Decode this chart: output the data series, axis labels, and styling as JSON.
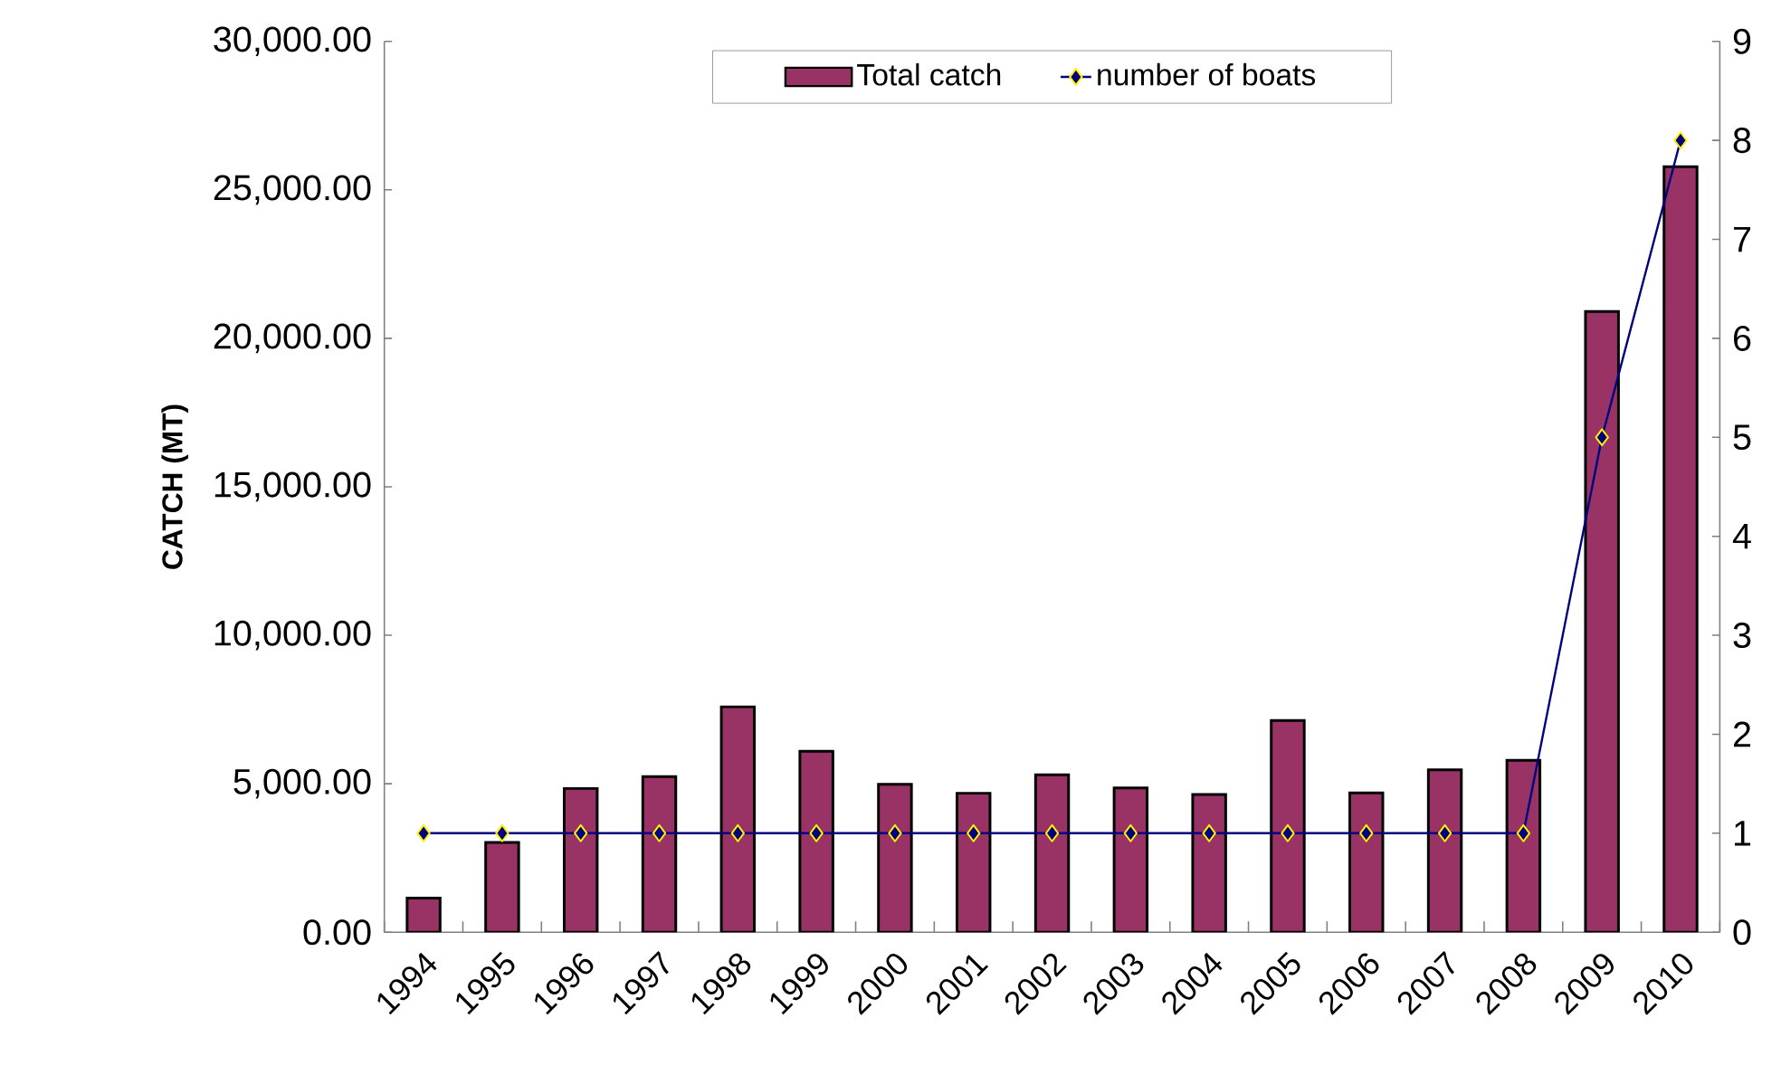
{
  "chart_data": {
    "type": "bar",
    "ylabel": "CATCH (MT)",
    "categories": [
      "1994",
      "1995",
      "1996",
      "1997",
      "1998",
      "1999",
      "2000",
      "2001",
      "2002",
      "2003",
      "2004",
      "2005",
      "2006",
      "2007",
      "2008",
      "2009",
      "2010"
    ],
    "series": [
      {
        "name": "Total catch",
        "color": "#993366",
        "values": [
          1150,
          3020,
          4840,
          5240,
          7590,
          6090,
          4980,
          4680,
          5300,
          4860,
          4640,
          7130,
          4690,
          5470,
          5790,
          20900,
          25780
        ]
      },
      {
        "name": "number of boats",
        "type": "line",
        "axis": "y2",
        "color": "#000080",
        "marker": "diamond",
        "values": [
          1,
          1,
          1,
          1,
          1,
          1,
          1,
          1,
          1,
          1,
          1,
          1,
          1,
          1,
          1,
          5,
          8
        ]
      }
    ],
    "ylim": [
      0,
      30000
    ],
    "yticks": [
      {
        "value": 0,
        "label": "0.00"
      },
      {
        "value": 5000,
        "label": "5,000.00"
      },
      {
        "value": 10000,
        "label": "10,000.00"
      },
      {
        "value": 15000,
        "label": "15,000.00"
      },
      {
        "value": 20000,
        "label": "20,000.00"
      },
      {
        "value": 25000,
        "label": "25,000.00"
      },
      {
        "value": 30000,
        "label": "30,000.00"
      }
    ],
    "y2lim": [
      0,
      9
    ],
    "y2ticks": [
      0,
      1,
      2,
      3,
      4,
      5,
      6,
      7,
      8,
      9
    ],
    "legend": "top",
    "grid": false
  }
}
